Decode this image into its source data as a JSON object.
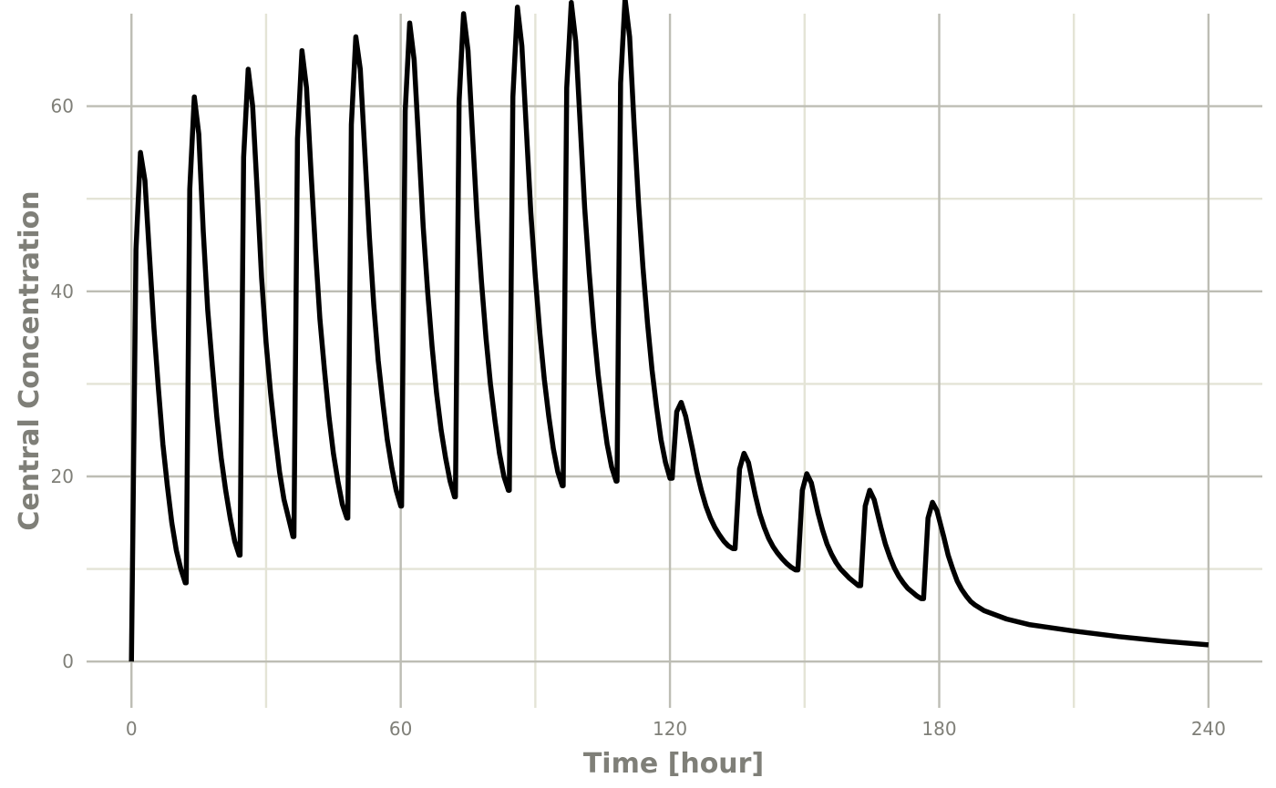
{
  "chart_data": {
    "type": "line",
    "title": "",
    "xlabel": "Time [hour]",
    "ylabel": "Central Concentration",
    "xlim": [
      -10,
      252
    ],
    "ylim": [
      -5,
      70
    ],
    "x_ticks": [
      0,
      60,
      120,
      180,
      240
    ],
    "x_tick_labels": [
      "0",
      "60",
      "120",
      "180",
      "240"
    ],
    "x_minor_ticks": [
      30,
      90,
      150,
      210
    ],
    "y_ticks": [
      0,
      20,
      40,
      60
    ],
    "y_tick_labels": [
      "0",
      "20",
      "40",
      "60"
    ],
    "y_minor_ticks": [
      10,
      30,
      50
    ],
    "grid": true,
    "legend": "none",
    "series": [
      {
        "color": "#000000",
        "x": [
          0,
          1,
          2,
          3,
          4,
          5,
          6,
          7,
          8,
          9,
          10,
          11,
          12,
          12.2,
          13,
          14,
          15,
          16,
          17,
          18,
          19,
          20,
          21,
          22,
          23,
          24,
          24.2,
          25,
          26,
          27,
          28,
          29,
          30,
          31,
          32,
          33,
          34,
          35,
          36,
          36.2,
          37,
          38,
          39,
          40,
          41,
          42,
          43,
          44,
          45,
          46,
          47,
          48,
          48.2,
          49,
          50,
          51,
          52,
          53,
          54,
          55,
          56,
          57,
          58,
          59,
          60,
          60.2,
          61,
          62,
          63,
          64,
          65,
          66,
          67,
          68,
          69,
          70,
          71,
          72,
          72.2,
          73,
          74,
          75,
          76,
          77,
          78,
          79,
          80,
          81,
          82,
          83,
          84,
          84.2,
          85,
          86,
          87,
          88,
          89,
          90,
          91,
          92,
          93,
          94,
          95,
          96,
          96.2,
          97,
          98,
          99,
          100,
          101,
          102,
          103,
          104,
          105,
          106,
          107,
          108,
          108.2,
          109,
          110,
          111,
          112,
          113,
          114,
          115,
          116,
          117,
          118,
          119,
          120,
          120.5,
          121.5,
          122.5,
          123.5,
          125,
          126,
          127,
          128,
          129,
          130,
          131,
          132,
          133,
          134,
          134.5,
          135.5,
          136.5,
          137.5,
          139,
          140,
          141,
          142,
          143,
          144,
          145,
          146,
          147,
          148,
          148.5,
          149.5,
          150.5,
          151.5,
          153,
          154,
          155,
          156,
          157,
          158,
          159,
          160,
          161,
          162,
          162.5,
          163.5,
          164.5,
          165.5,
          167,
          168,
          169,
          170,
          171,
          172,
          173,
          174,
          175,
          176,
          176.5,
          177.5,
          178.5,
          179.5,
          181,
          182,
          183,
          184,
          185,
          186,
          187,
          188,
          190,
          195,
          200,
          210,
          220,
          230,
          240
        ],
        "y": [
          0,
          44.5,
          55.0,
          52.0,
          44.0,
          36.0,
          29.5,
          23.5,
          19.0,
          15.0,
          12.0,
          10.0,
          8.5,
          8.5,
          51.0,
          61.0,
          57.0,
          46.5,
          38.0,
          32.0,
          26.5,
          22.0,
          18.5,
          15.5,
          13.0,
          11.5,
          11.5,
          54.5,
          64.0,
          60.0,
          51.0,
          41.5,
          34.5,
          29.0,
          24.5,
          20.5,
          17.5,
          15.5,
          13.5,
          13.5,
          56.5,
          66.0,
          62.0,
          53.0,
          44.5,
          37.0,
          31.5,
          26.5,
          22.5,
          19.5,
          17.0,
          15.5,
          15.5,
          58.0,
          67.5,
          64.0,
          55.0,
          46.0,
          38.5,
          32.5,
          28.0,
          24.0,
          21.0,
          18.5,
          16.8,
          16.8,
          59.5,
          69.0,
          65.0,
          56.0,
          47.0,
          40.0,
          34.0,
          29.0,
          25.0,
          22.0,
          19.5,
          17.8,
          17.8,
          60.5,
          70.0,
          66.0,
          57.0,
          48.0,
          41.0,
          35.0,
          30.0,
          26.0,
          22.5,
          20.0,
          18.5,
          18.5,
          61.0,
          70.7,
          66.5,
          57.5,
          48.5,
          41.5,
          35.5,
          30.5,
          26.5,
          23.0,
          20.5,
          19.0,
          19.0,
          62.0,
          71.2,
          67.0,
          58.0,
          49.0,
          42.0,
          36.0,
          31.0,
          27.0,
          23.5,
          21.0,
          19.5,
          19.5,
          62.5,
          71.6,
          67.5,
          58.0,
          49.5,
          42.5,
          36.5,
          31.5,
          27.5,
          24.0,
          21.5,
          19.8,
          19.8,
          27.0,
          28.0,
          26.5,
          23.0,
          20.5,
          18.5,
          16.8,
          15.5,
          14.5,
          13.7,
          13.0,
          12.5,
          12.2,
          12.2,
          20.8,
          22.5,
          21.5,
          18.0,
          16.0,
          14.5,
          13.3,
          12.4,
          11.7,
          11.1,
          10.6,
          10.2,
          9.9,
          9.9,
          18.5,
          20.3,
          19.3,
          16.0,
          14.2,
          12.7,
          11.6,
          10.7,
          10.0,
          9.5,
          9.0,
          8.6,
          8.2,
          8.2,
          16.8,
          18.5,
          17.5,
          14.5,
          12.7,
          11.3,
          10.1,
          9.2,
          8.5,
          7.9,
          7.5,
          7.1,
          6.8,
          6.8,
          15.5,
          17.2,
          16.3,
          13.5,
          11.5,
          10.0,
          8.7,
          7.8,
          7.1,
          6.5,
          6.1,
          5.5,
          4.6,
          4.0,
          3.3,
          2.7,
          2.2,
          1.8
        ]
      }
    ]
  }
}
